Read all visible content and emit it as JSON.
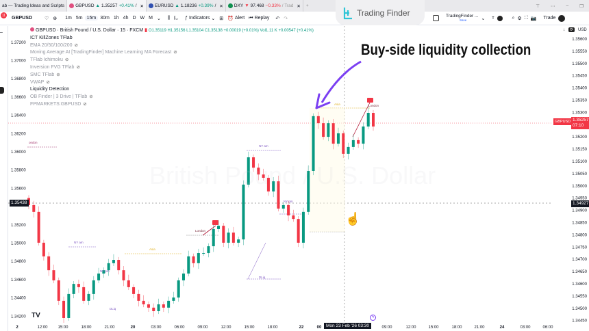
{
  "browser_tabs": [
    {
      "label": "ab — Trading Ideas and Scripts",
      "active": false
    },
    {
      "label": "GBPUSD",
      "direction": "up",
      "price": "1.35257",
      "change": "+0.41%",
      "suffix": "/",
      "active": true
    },
    {
      "label": "EURUSD",
      "direction": "up",
      "price": "1.18236",
      "change": "+0.39%",
      "suffix": "/",
      "active": false
    },
    {
      "label": "DXY",
      "direction": "down",
      "price": "97.468",
      "change": "−0.33%",
      "suffix": "/ Trad",
      "active": false
    }
  ],
  "toolbar": {
    "notification_count": "11",
    "symbol": "GBPUSD",
    "intervals": [
      "1m",
      "5m",
      "15m",
      "30m",
      "1h",
      "4h",
      "D",
      "W",
      "M"
    ],
    "selected_interval": "15m",
    "indicators_label": "Indicators",
    "alert_label": "Alert",
    "replay_label": "Replay",
    "layout_name": "TradingFinder ...",
    "layout_save": "Save",
    "trade_label": "Trade"
  },
  "logo": {
    "text": "Trading Finder",
    "color": "#2ec4d6"
  },
  "legend": {
    "title": "GBPUSD · British Pound / U.S. Dollar · 15 · FXCM",
    "ohlc": "O1.35119 H1.35156 L1.35104 C1.35138 +0.00019 (+0.01%) Vol1.11 K +0.00547 (+0.41%)",
    "indicators": [
      {
        "name": "ICT KillZones TFlab",
        "hidden": false
      },
      {
        "name": "EMA 20/50/100/200",
        "hidden": true
      },
      {
        "name": "Moving Average AI [TradingFinder] Machine Learning MA Forecast",
        "hidden": true
      },
      {
        "name": "TFlab Ichimoku",
        "hidden": true
      },
      {
        "name": "Inversion FVG TFlab",
        "hidden": true
      },
      {
        "name": "SMC TFlab",
        "hidden": true
      },
      {
        "name": "VWAP",
        "hidden": true
      },
      {
        "name": "Liquidity Detection",
        "hidden": false
      },
      {
        "name": "OB Finder | 3 Drive | TFlab",
        "hidden": true
      },
      {
        "name": "FPMARKETS:GBPUSD",
        "hidden": true
      }
    ]
  },
  "headline": "Buy-side liquidity collection",
  "watermark": "British Pound / U.S. Dollar",
  "currency": "USD",
  "colors": {
    "up": "#089981",
    "down": "#f23645",
    "arrow": "#7b3ff2",
    "session": "#7e57c2",
    "asia": "#e0b020"
  },
  "left_axis": [
    "1.37200",
    "1.37000",
    "1.36800",
    "1.36600",
    "1.36400",
    "1.36200",
    "1.36000",
    "1.35800",
    "1.35600",
    "1.35200",
    "1.35000",
    "1.34800",
    "1.34600",
    "1.34400",
    "1.34200"
  ],
  "left_crosshair_price": "1.35438",
  "right_axis": [
    "1.35600",
    "1.35550",
    "1.35500",
    "1.35450",
    "1.35400",
    "1.35350",
    "1.35300",
    "1.35200",
    "1.35150",
    "1.35100",
    "1.35050",
    "1.35000",
    "1.34950",
    "1.34900",
    "1.34850",
    "1.34800",
    "1.34750",
    "1.34700",
    "1.34650",
    "1.34600",
    "1.34550",
    "1.34500",
    "1.34450"
  ],
  "current_price": {
    "symbol": "GBPUSD",
    "price": "1.35257",
    "countdown": "07:10"
  },
  "crosshair_price": "1.34927",
  "crosshair_time": "Mon 23 Feb '26  03:30",
  "time_axis": [
    "2",
    "12:00",
    "15:00",
    "18:00",
    "21:00",
    "20",
    "03:00",
    "06:00",
    "09:00",
    "12:00",
    "15:00",
    "18:00",
    "22",
    "00",
    "09:00",
    "12:00",
    "15:00",
    "18:00",
    "21:00",
    "24",
    "03:00",
    "06:00"
  ],
  "annotations": {
    "london": "London",
    "ny_am": "NY am",
    "ny_pm": "NY pm",
    "asia": "Asia",
    "dliq": "DLiq",
    "london_left": "ondon"
  },
  "chart_data": {
    "type": "candlestick",
    "closes": [
      1.34894,
      1.34865,
      1.34734,
      1.34676,
      1.34617,
      1.34574,
      1.34487,
      1.34414,
      1.34516,
      1.34559,
      1.34545,
      1.34487,
      1.34516,
      1.34574,
      1.34603,
      1.34617,
      1.34647,
      1.34661,
      1.34617,
      1.34574,
      1.34545,
      1.34516,
      1.34487,
      1.34472,
      1.34458,
      1.34443,
      1.34472,
      1.34458,
      1.34487,
      1.34501,
      1.34574,
      1.34603,
      1.34676,
      1.34647,
      1.3469,
      1.3469,
      1.34719,
      1.34792,
      1.34806,
      1.34734,
      1.34777,
      1.34734,
      1.34748,
      1.34981,
      1.35097,
      1.35053,
      1.35024,
      1.3501,
      1.34952,
      1.34995,
      1.34879,
      1.34894,
      1.3485,
      1.34835,
      1.34734,
      1.34865,
      1.35039,
      1.35272,
      1.35242,
      1.35184,
      1.35242,
      1.35155,
      1.35199,
      1.35112,
      1.35141,
      1.3517,
      1.35155,
      1.35228,
      1.35286,
      1.35228
    ],
    "ylim": [
      1.344,
      1.3562
    ]
  }
}
